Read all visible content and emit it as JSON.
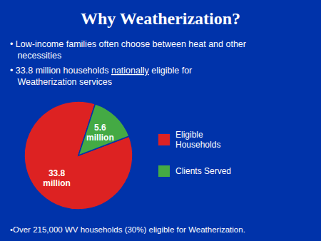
{
  "chart_data": {
    "type": "pie",
    "title": "Why Weatherization?",
    "categories": [
      "Eligible\nHouseholds",
      "Clients Served"
    ],
    "values": [
      33.8,
      5.6
    ],
    "colors": [
      "#DD2222",
      "#44AA44"
    ],
    "data_labels": true,
    "value_labels": [
      "33.8\nmillion",
      "5.6\nmillion"
    ],
    "legend": "right",
    "annotations": [
      [
        "• Low-income families often choose between heat and other"
      ],
      [
        "   necessities"
      ],
      [
        "• 33.8 million households ",
        "nationally",
        " eligible for"
      ],
      [
        "   Weatherization services"
      ],
      [
        "•Over 215,000 WV households (30%) eligible for Weatherization."
      ]
    ]
  }
}
